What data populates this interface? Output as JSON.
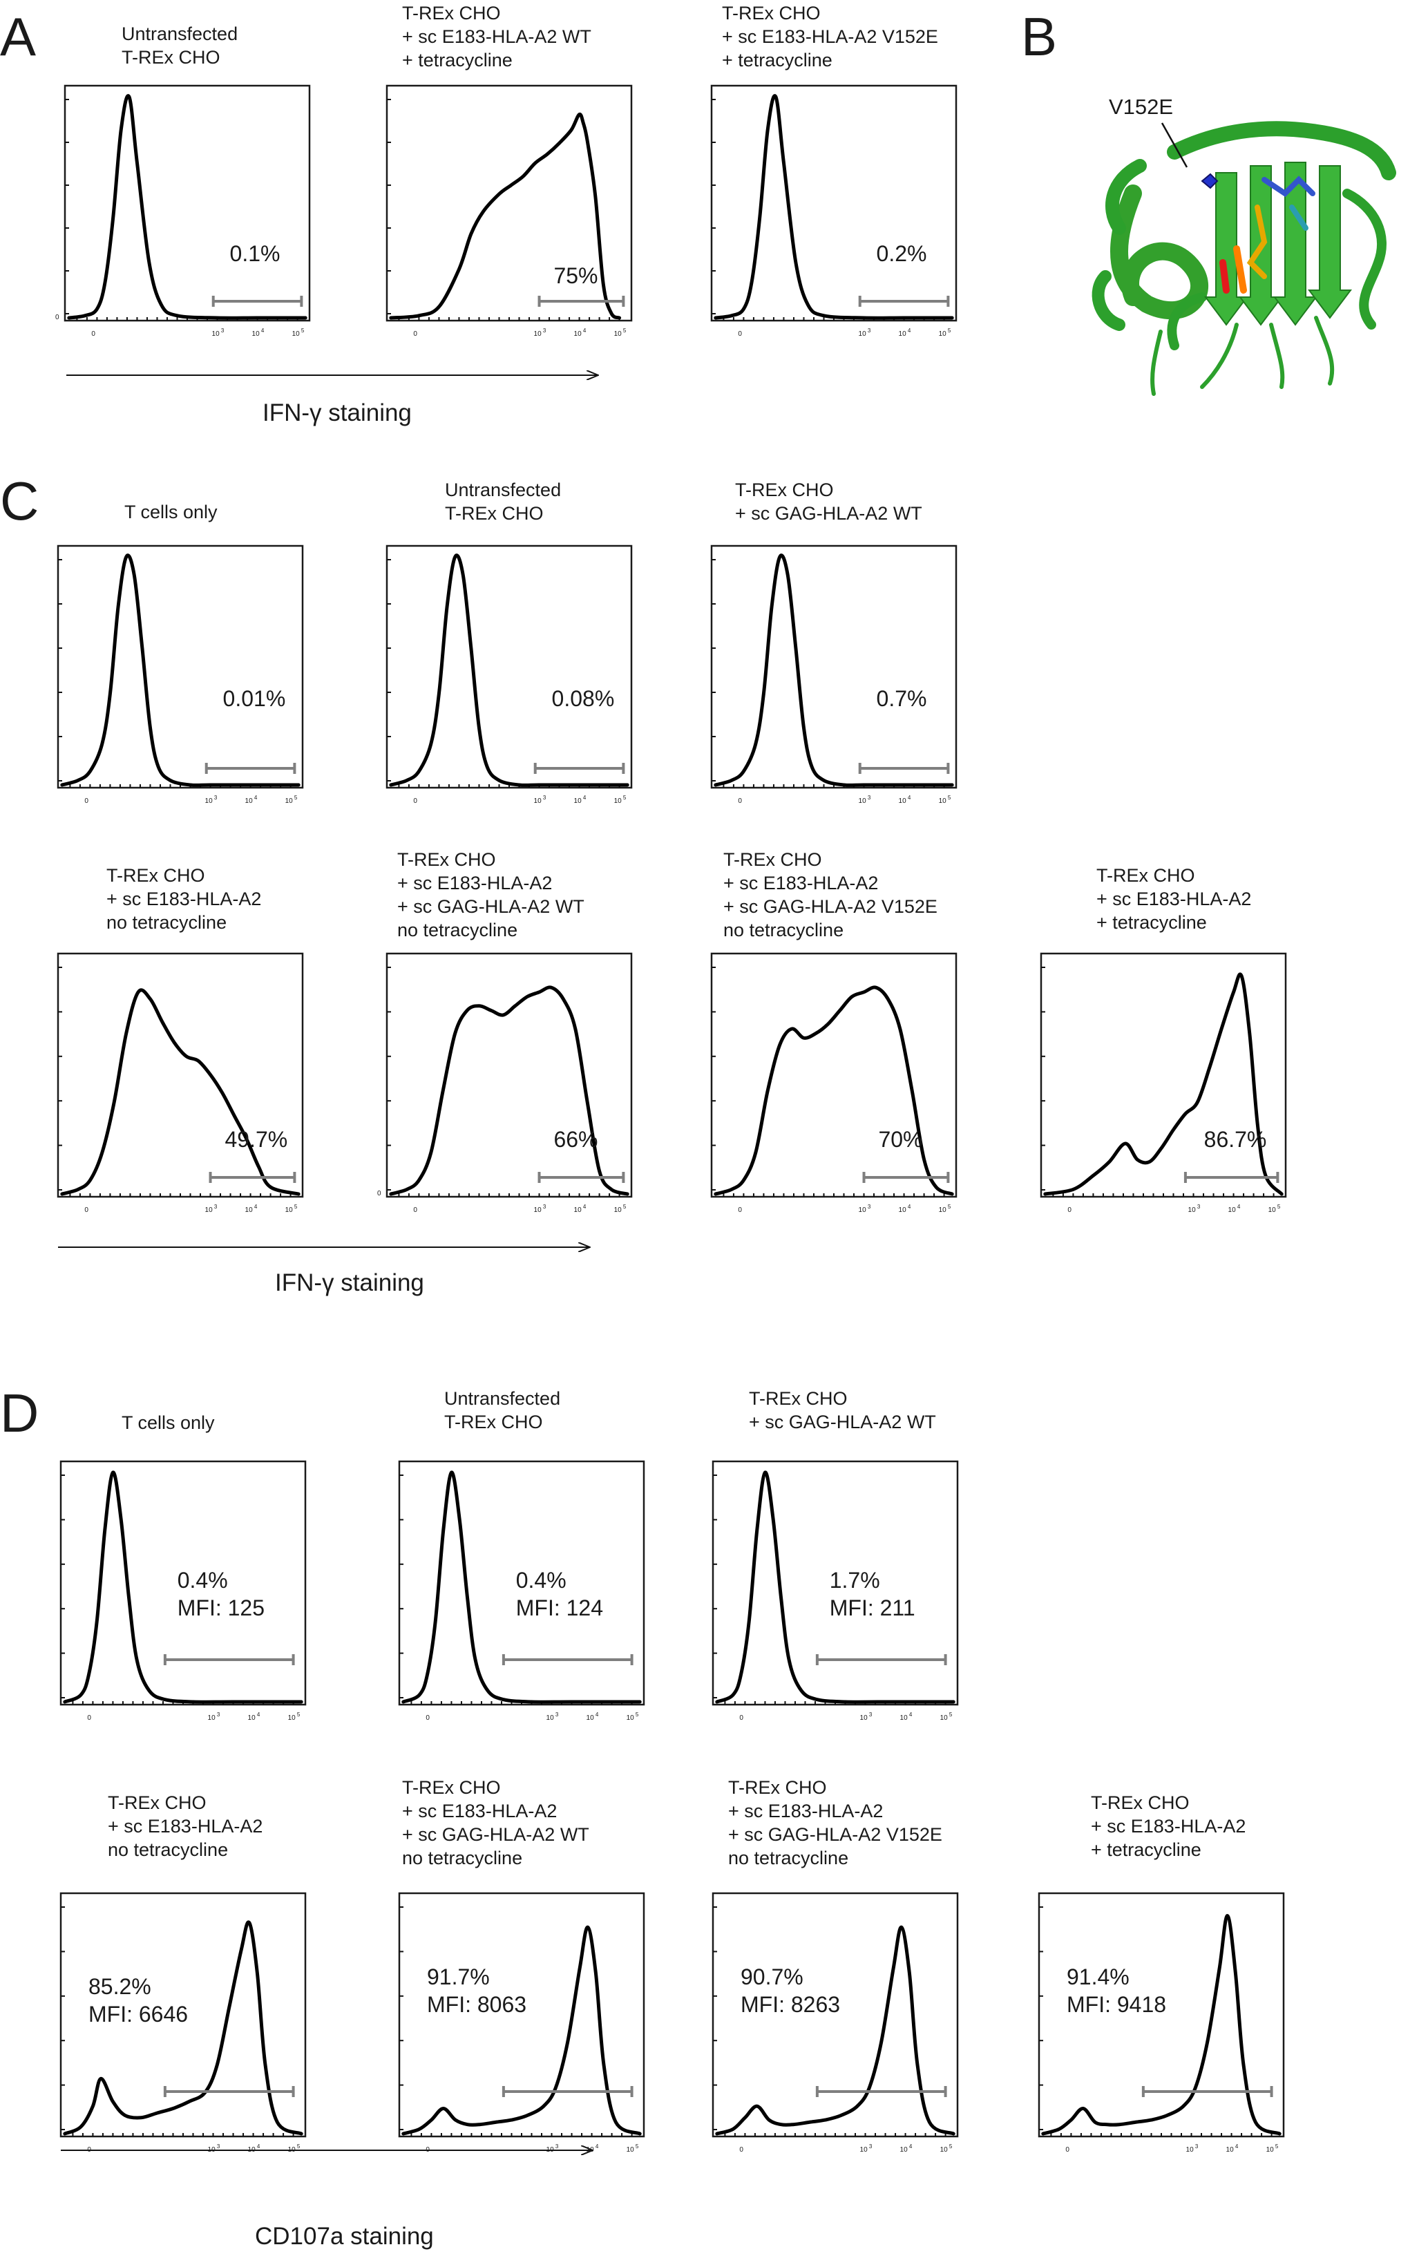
{
  "panels": {
    "A": {
      "letter": "A",
      "axis_label": "IFN-γ staining"
    },
    "B": {
      "letter": "B",
      "mutation_label": "V152E"
    },
    "C": {
      "letter": "C",
      "axis_label": "IFN-γ staining"
    },
    "D": {
      "letter": "D",
      "axis_label": "CD107a staining"
    }
  },
  "axis": {
    "xlim_log10": [
      -0.8,
      5.3
    ],
    "tick_labels": [
      {
        "value": 0,
        "base": "0",
        "exp": ""
      },
      {
        "value": 3,
        "base": "10",
        "exp": "3"
      },
      {
        "value": 4,
        "base": "10",
        "exp": "4"
      },
      {
        "value": 5,
        "base": "10",
        "exp": "5"
      }
    ]
  },
  "chart_data": [
    {
      "type": "histogram",
      "panel": "A",
      "title": [
        "Untransfected",
        "T-REx CHO"
      ],
      "x": [
        -0.7,
        -0.3,
        0,
        0.2,
        0.4,
        0.6,
        0.8,
        1,
        1.3,
        1.6,
        2,
        3,
        4,
        5.2
      ],
      "y": [
        0,
        1,
        4,
        16,
        45,
        85,
        100,
        70,
        25,
        6,
        1,
        0,
        0,
        0
      ],
      "gate": [
        2.9,
        5.1
      ],
      "gate_labels": [
        "0.1%"
      ],
      "y0_label": "0"
    },
    {
      "type": "histogram",
      "panel": "A",
      "title": [
        "T-REx CHO",
        "+ sc E183-HLA-A2 WT",
        "+ tetracycline"
      ],
      "x": [
        -0.7,
        0,
        0.5,
        1,
        1.3,
        1.6,
        2,
        2.3,
        2.6,
        2.9,
        3.2,
        3.5,
        3.8,
        4,
        4.1,
        4.2,
        4.4,
        4.6,
        4.8,
        5
      ],
      "y": [
        0,
        1,
        5,
        22,
        38,
        48,
        56,
        60,
        64,
        70,
        74,
        79,
        85,
        92,
        88,
        80,
        55,
        15,
        2,
        0
      ],
      "gate": [
        3.0,
        5.1
      ],
      "gate_labels": [
        "75%"
      ],
      "y0_label": ""
    },
    {
      "type": "histogram",
      "panel": "A",
      "title": [
        "T-REx CHO",
        "+ sc E183-HLA-A2 V152E",
        "+ tetracycline"
      ],
      "x": [
        -0.7,
        -0.3,
        0,
        0.2,
        0.4,
        0.6,
        0.8,
        1,
        1.3,
        1.6,
        2,
        3,
        4,
        5.2
      ],
      "y": [
        0,
        1,
        4,
        16,
        45,
        85,
        100,
        70,
        25,
        6,
        1,
        0,
        0,
        0
      ],
      "gate": [
        2.9,
        5.1
      ],
      "gate_labels": [
        "0.2%"
      ],
      "y0_label": ""
    },
    {
      "type": "histogram",
      "panel": "C",
      "title": [
        "T cells only"
      ],
      "x": [
        -0.7,
        -0.3,
        0,
        0.3,
        0.5,
        0.7,
        0.9,
        1.1,
        1.3,
        1.5,
        1.7,
        2,
        2.5,
        3,
        4,
        5.2
      ],
      "y": [
        0,
        2,
        6,
        18,
        40,
        78,
        100,
        92,
        60,
        25,
        8,
        2,
        0,
        0,
        0,
        0
      ],
      "gate": [
        2.9,
        5.1
      ],
      "gate_labels": [
        "0.01%"
      ],
      "y0_label": ""
    },
    {
      "type": "histogram",
      "panel": "C",
      "title": [
        "Untransfected",
        "T-REx CHO"
      ],
      "x": [
        -0.7,
        -0.3,
        0,
        0.3,
        0.5,
        0.7,
        0.9,
        1.1,
        1.3,
        1.5,
        1.7,
        2,
        2.5,
        3,
        4,
        5.2
      ],
      "y": [
        0,
        2,
        6,
        18,
        40,
        78,
        100,
        92,
        60,
        25,
        8,
        2,
        0,
        0,
        0,
        0
      ],
      "gate": [
        2.9,
        5.1
      ],
      "gate_labels": [
        "0.08%"
      ],
      "y0_label": ""
    },
    {
      "type": "histogram",
      "panel": "C",
      "title": [
        "T-REx CHO",
        "+ sc GAG-HLA-A2 WT"
      ],
      "x": [
        -0.7,
        -0.3,
        0,
        0.3,
        0.5,
        0.7,
        0.9,
        1.1,
        1.3,
        1.5,
        1.7,
        2,
        2.5,
        3,
        4,
        5.2
      ],
      "y": [
        0,
        2,
        6,
        18,
        40,
        78,
        100,
        92,
        60,
        25,
        8,
        2,
        0,
        0,
        0,
        0
      ],
      "gate": [
        2.9,
        5.1
      ],
      "gate_labels": [
        "0.7%"
      ],
      "y0_label": ""
    },
    {
      "type": "histogram",
      "panel": "C",
      "title": [
        "T-REx CHO",
        "+ sc E183-HLA-A2",
        "no tetracycline"
      ],
      "x": [
        -0.7,
        -0.3,
        0,
        0.3,
        0.6,
        0.9,
        1.2,
        1.5,
        1.8,
        2.1,
        2.4,
        2.7,
        3,
        3.3,
        3.6,
        3.9,
        4.2,
        4.5,
        5.2
      ],
      "y": [
        0,
        2,
        6,
        18,
        40,
        70,
        88,
        85,
        75,
        66,
        60,
        58,
        52,
        44,
        34,
        24,
        12,
        3,
        0
      ],
      "gate": [
        3.0,
        5.1
      ],
      "gate_labels": [
        "49.7%"
      ],
      "y0_label": ""
    },
    {
      "type": "histogram",
      "panel": "C",
      "title": [
        "T-REx CHO",
        "+ sc E183-HLA-A2",
        "+ sc GAG-HLA-A2 WT",
        "no tetracycline"
      ],
      "x": [
        -0.7,
        -0.3,
        0,
        0.3,
        0.6,
        0.9,
        1.2,
        1.5,
        1.8,
        2.1,
        2.4,
        2.7,
        3,
        3.3,
        3.6,
        3.9,
        4.2,
        4.5,
        4.8,
        5.2
      ],
      "y": [
        0,
        2,
        6,
        18,
        45,
        70,
        80,
        82,
        80,
        78,
        82,
        86,
        88,
        90,
        85,
        72,
        40,
        10,
        2,
        0
      ],
      "gate": [
        3.0,
        5.1
      ],
      "gate_labels": [
        "66%"
      ],
      "y0_label": "0"
    },
    {
      "type": "histogram",
      "panel": "C",
      "title": [
        "T-REx CHO",
        "+ sc E183-HLA-A2",
        "+ sc GAG-HLA-A2 V152E",
        "no tetracycline"
      ],
      "x": [
        -0.7,
        -0.3,
        0,
        0.3,
        0.6,
        0.9,
        1.2,
        1.5,
        1.8,
        2.1,
        2.4,
        2.7,
        3,
        3.3,
        3.6,
        3.9,
        4.2,
        4.5,
        4.8,
        5.2
      ],
      "y": [
        0,
        2,
        6,
        18,
        45,
        65,
        72,
        68,
        70,
        74,
        80,
        86,
        88,
        90,
        85,
        72,
        45,
        15,
        3,
        0
      ],
      "gate": [
        3.0,
        5.1
      ],
      "gate_labels": [
        "70%"
      ],
      "y0_label": ""
    },
    {
      "type": "histogram",
      "panel": "C",
      "title": [
        "T-REx CHO",
        "+ sc E183-HLA-A2",
        "+ tetracycline"
      ],
      "x": [
        -0.7,
        0,
        0.5,
        0.9,
        1.3,
        1.6,
        1.9,
        2.2,
        2.5,
        2.8,
        3.1,
        3.4,
        3.7,
        4,
        4.2,
        4.4,
        4.6,
        4.8,
        5.2
      ],
      "y": [
        0,
        2,
        8,
        14,
        22,
        15,
        14,
        20,
        28,
        35,
        40,
        55,
        72,
        88,
        95,
        70,
        30,
        8,
        0
      ],
      "gate": [
        2.8,
        5.1
      ],
      "gate_labels": [
        "86.7%"
      ],
      "y0_label": ""
    },
    {
      "type": "histogram",
      "panel": "D",
      "title": [
        "T cells only"
      ],
      "x": [
        -0.7,
        -0.3,
        -0.1,
        0.1,
        0.3,
        0.5,
        0.7,
        0.9,
        1.1,
        1.4,
        1.8,
        2.5,
        3.5,
        5.2
      ],
      "y": [
        0,
        3,
        12,
        35,
        75,
        100,
        80,
        45,
        18,
        5,
        1,
        0,
        0,
        0
      ],
      "gate": [
        1.8,
        5.0
      ],
      "gate_labels": [
        "0.4%",
        "MFI: 125"
      ],
      "y0_label": ""
    },
    {
      "type": "histogram",
      "panel": "D",
      "title": [
        "Untransfected",
        "T-REx CHO"
      ],
      "x": [
        -0.7,
        -0.3,
        -0.1,
        0.1,
        0.3,
        0.5,
        0.7,
        0.9,
        1.1,
        1.4,
        1.8,
        2.5,
        3.5,
        5.2
      ],
      "y": [
        0,
        3,
        12,
        35,
        75,
        100,
        80,
        45,
        18,
        5,
        1,
        0,
        0,
        0
      ],
      "gate": [
        1.8,
        5.0
      ],
      "gate_labels": [
        "0.4%",
        "MFI: 124"
      ],
      "y0_label": ""
    },
    {
      "type": "histogram",
      "panel": "D",
      "title": [
        "T-REx CHO",
        "+ sc GAG-HLA-A2 WT"
      ],
      "x": [
        -0.7,
        -0.3,
        -0.1,
        0.1,
        0.3,
        0.5,
        0.7,
        0.9,
        1.1,
        1.4,
        1.8,
        2.5,
        3.5,
        5.2
      ],
      "y": [
        0,
        3,
        12,
        35,
        75,
        100,
        80,
        45,
        18,
        5,
        1,
        0,
        0,
        0
      ],
      "gate": [
        1.8,
        5.0
      ],
      "gate_labels": [
        "1.7%",
        "MFI: 211"
      ],
      "y0_label": ""
    },
    {
      "type": "histogram",
      "panel": "D",
      "title": [
        "T-REx CHO",
        "+ sc E183-HLA-A2",
        "no tetracycline"
      ],
      "x": [
        -0.7,
        -0.3,
        0,
        0.2,
        0.5,
        0.8,
        1.2,
        1.6,
        2,
        2.4,
        2.8,
        3.1,
        3.4,
        3.7,
        3.9,
        4.1,
        4.3,
        4.6,
        5.2
      ],
      "y": [
        0,
        3,
        12,
        24,
        14,
        8,
        7,
        9,
        11,
        14,
        18,
        30,
        55,
        80,
        92,
        70,
        30,
        5,
        0
      ],
      "gate": [
        1.8,
        5.0
      ],
      "gate_labels": [
        "85.2%",
        "MFI: 6646"
      ],
      "y0_label": ""
    },
    {
      "type": "histogram",
      "panel": "D",
      "title": [
        "T-REx CHO",
        "+ sc E183-HLA-A2",
        "+ sc GAG-HLA-A2 WT",
        "no tetracycline"
      ],
      "x": [
        -0.7,
        -0.3,
        0,
        0.3,
        0.6,
        0.9,
        1.2,
        1.6,
        2,
        2.4,
        2.8,
        3.1,
        3.4,
        3.7,
        3.9,
        4.1,
        4.3,
        4.6,
        5.2
      ],
      "y": [
        0,
        2,
        6,
        11,
        6,
        4,
        4,
        5,
        6,
        8,
        12,
        20,
        40,
        72,
        90,
        70,
        30,
        5,
        0
      ],
      "gate": [
        1.8,
        5.0
      ],
      "gate_labels": [
        "91.7%",
        "MFI: 8063"
      ],
      "y0_label": ""
    },
    {
      "type": "histogram",
      "panel": "D",
      "title": [
        "T-REx CHO",
        "+ sc E183-HLA-A2",
        "+ sc GAG-HLA-A2 V152E",
        "no tetracycline"
      ],
      "x": [
        -0.7,
        -0.3,
        0,
        0.3,
        0.6,
        0.9,
        1.2,
        1.6,
        2,
        2.4,
        2.8,
        3.1,
        3.4,
        3.7,
        3.9,
        4.1,
        4.3,
        4.6,
        5.2
      ],
      "y": [
        0,
        2,
        7,
        12,
        6,
        4,
        4,
        5,
        6,
        8,
        12,
        20,
        40,
        72,
        90,
        70,
        30,
        5,
        0
      ],
      "gate": [
        1.8,
        5.0
      ],
      "gate_labels": [
        "90.7%",
        "MFI: 8263"
      ],
      "y0_label": ""
    },
    {
      "type": "histogram",
      "panel": "D",
      "title": [
        "T-REx CHO",
        "+ sc E183-HLA-A2",
        "+ tetracycline"
      ],
      "x": [
        -0.7,
        -0.3,
        0,
        0.3,
        0.6,
        0.9,
        1.2,
        1.6,
        2,
        2.4,
        2.8,
        3.1,
        3.4,
        3.7,
        3.9,
        4.1,
        4.3,
        4.6,
        5.2
      ],
      "y": [
        0,
        2,
        6,
        11,
        5,
        4,
        4,
        5,
        6,
        8,
        12,
        20,
        40,
        72,
        95,
        70,
        30,
        5,
        0
      ],
      "gate": [
        1.8,
        5.0
      ],
      "gate_labels": [
        "91.4%",
        "MFI: 9418"
      ],
      "y0_label": ""
    }
  ]
}
